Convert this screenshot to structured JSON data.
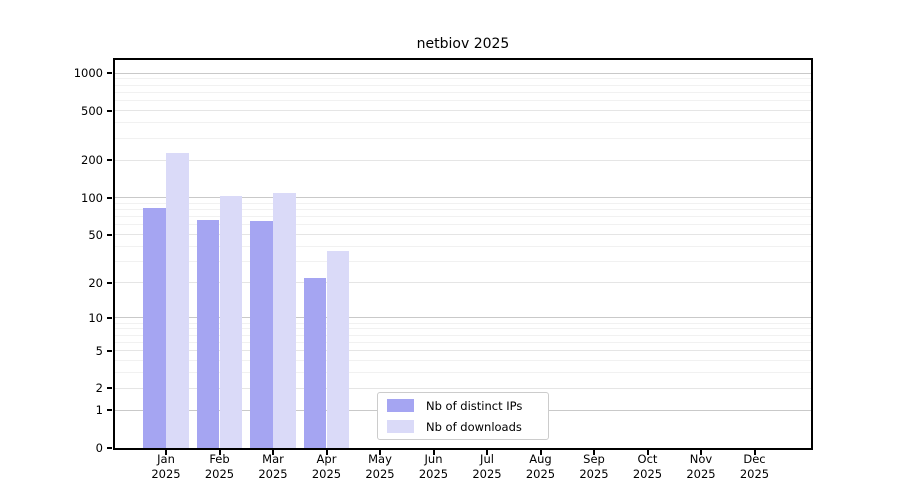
{
  "title": "netbiov 2025",
  "chart_data": {
    "type": "bar",
    "title": "netbiov 2025",
    "categories": [
      "Jan",
      "Feb",
      "Mar",
      "Apr",
      "May",
      "Jun",
      "Jul",
      "Aug",
      "Sep",
      "Oct",
      "Nov",
      "Dec"
    ],
    "x_year": "2025",
    "series": [
      {
        "name": "Nb of distinct IPs",
        "color": "#a5a5f2",
        "values": [
          82,
          66,
          64,
          22,
          0,
          0,
          0,
          0,
          0,
          0,
          0,
          0
        ]
      },
      {
        "name": "Nb of downloads",
        "color": "#dadaf8",
        "values": [
          230,
          103,
          108,
          37,
          0,
          0,
          0,
          0,
          0,
          0,
          0,
          0
        ]
      }
    ],
    "yscale": "log1p",
    "yticks": [
      0,
      1,
      2,
      5,
      10,
      20,
      50,
      100,
      200,
      500,
      1000
    ],
    "yticks_mid": [
      2,
      5,
      20,
      50,
      200,
      500
    ],
    "yticks_major": [
      1,
      10,
      100,
      1000
    ],
    "yminor": [
      3,
      4,
      6,
      7,
      8,
      9,
      30,
      40,
      60,
      70,
      80,
      90,
      300,
      400,
      600,
      700,
      800,
      900
    ],
    "ylim": [
      0,
      1272
    ],
    "grid": true,
    "legend_position": "lower center",
    "background": "#ffffff",
    "spine_color": "#000000"
  },
  "legend": {
    "items": [
      {
        "label": "Nb of distinct IPs",
        "color": "#a5a5f2"
      },
      {
        "label": "Nb of downloads",
        "color": "#dadaf8"
      }
    ]
  }
}
